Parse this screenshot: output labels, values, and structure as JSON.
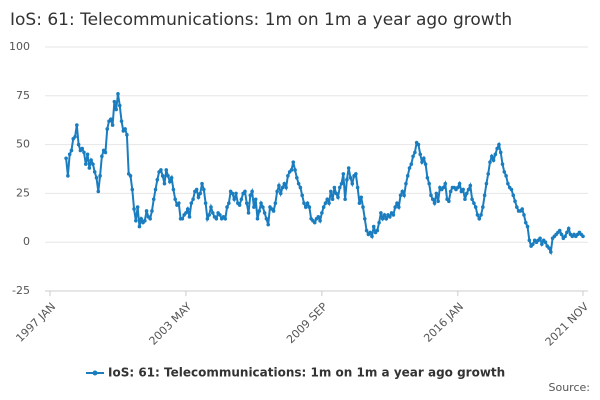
{
  "chart_data": {
    "type": "line",
    "title": "IoS: 61: Telecommunications: 1m on 1m a year ago growth",
    "source": "Source:",
    "categories": [
      "1997 JAN",
      null,
      null,
      null,
      null,
      null,
      null,
      null,
      null,
      null,
      null,
      null,
      null,
      null,
      null,
      null,
      null,
      null,
      null,
      null,
      null,
      null,
      null,
      null,
      null,
      null,
      null,
      null,
      null,
      null,
      null,
      null,
      null,
      null,
      null,
      null,
      null,
      null,
      null,
      null,
      null,
      null,
      null,
      null,
      null,
      null,
      null,
      null,
      null,
      null,
      null,
      null,
      null,
      null,
      null,
      null,
      null,
      null,
      null,
      null,
      null,
      null,
      null,
      null,
      null,
      null,
      null,
      null,
      null,
      null,
      null,
      null,
      null,
      null,
      null,
      null,
      "2003 MAY",
      null,
      null,
      null,
      null,
      null,
      null,
      null,
      null,
      null,
      null,
      null,
      null,
      null,
      null,
      null,
      null,
      null,
      null,
      null,
      null,
      null,
      null,
      null,
      null,
      null,
      null,
      null,
      null,
      null,
      null,
      null,
      null,
      null,
      null,
      null,
      null,
      null,
      null,
      null,
      null,
      null,
      null,
      null,
      null,
      null,
      null,
      null,
      null,
      null,
      null,
      null,
      null,
      null,
      null,
      null,
      null,
      null,
      null,
      null,
      null,
      null,
      null,
      null,
      null,
      null,
      null,
      null,
      null,
      null,
      null,
      null,
      null,
      null,
      null,
      null,
      "2009 SEP",
      null,
      null,
      null,
      null,
      null,
      null,
      null,
      null,
      null,
      null,
      null,
      null,
      null,
      null,
      null,
      null,
      null,
      null,
      null,
      null,
      null,
      null,
      null,
      null,
      null,
      null,
      null,
      null,
      null,
      null,
      null,
      null,
      null,
      null,
      null,
      null,
      null,
      null,
      null,
      null,
      null,
      null,
      null,
      null,
      null,
      null,
      null,
      null,
      null,
      null,
      null,
      null,
      null,
      null,
      null,
      null,
      null,
      null,
      null,
      null,
      null,
      null,
      null,
      null,
      null,
      null,
      null,
      null,
      null,
      null,
      null,
      null,
      null,
      null,
      null,
      "2016 JAN",
      null,
      null,
      null,
      null,
      null,
      null,
      null,
      null,
      null,
      null,
      null,
      null,
      null,
      null,
      null,
      null,
      null,
      null,
      null,
      null,
      null,
      null,
      null,
      null,
      null,
      null,
      null,
      null,
      null,
      null,
      null,
      null,
      null,
      null,
      null,
      null,
      null,
      null,
      null,
      null,
      null,
      null,
      null,
      null,
      null,
      null,
      null,
      null,
      null,
      null,
      null,
      null,
      null,
      null,
      null,
      null,
      null,
      null,
      null,
      null,
      null,
      null,
      null,
      null,
      null,
      null,
      null,
      null,
      null,
      "2021 NOV"
    ],
    "series": [
      {
        "name": "IoS: 61: Telecommunications: 1m on 1m a year ago growth",
        "color": "#1a7dbf",
        "values": [
          null,
          null,
          null,
          null,
          null,
          null,
          null,
          null,
          null,
          43,
          34,
          45,
          47,
          53,
          54,
          60,
          50,
          47,
          48,
          46,
          40,
          45,
          38,
          42,
          40,
          36,
          33,
          26,
          34,
          44,
          47,
          46,
          58,
          62,
          63,
          60,
          72,
          68,
          76,
          70,
          62,
          57,
          58,
          55,
          35,
          34,
          27,
          17,
          11,
          18,
          8,
          12,
          10,
          11,
          16,
          13,
          12,
          16,
          22,
          27,
          32,
          36,
          37,
          34,
          30,
          37,
          34,
          31,
          33,
          27,
          22,
          19,
          20,
          12,
          12,
          14,
          15,
          17,
          13,
          20,
          22,
          26,
          27,
          23,
          25,
          30,
          27,
          20,
          12,
          14,
          18,
          15,
          13,
          12,
          15,
          14,
          12,
          13,
          12,
          18,
          20,
          26,
          25,
          22,
          25,
          20,
          19,
          22,
          25,
          26,
          20,
          15,
          24,
          26,
          18,
          22,
          12,
          16,
          20,
          18,
          15,
          12,
          9,
          18,
          17,
          16,
          20,
          26,
          29,
          25,
          28,
          30,
          28,
          34,
          36,
          37,
          41,
          37,
          33,
          30,
          28,
          24,
          20,
          18,
          20,
          18,
          12,
          11,
          10,
          12,
          13,
          11,
          15,
          18,
          20,
          22,
          20,
          26,
          22,
          28,
          25,
          23,
          28,
          30,
          35,
          22,
          32,
          38,
          33,
          30,
          34,
          35,
          28,
          20,
          23,
          18,
          12,
          6,
          4,
          5,
          3,
          8,
          5,
          6,
          10,
          15,
          12,
          14,
          12,
          14,
          13,
          15,
          14,
          18,
          20,
          18,
          24,
          26,
          24,
          30,
          34,
          38,
          40,
          44,
          46,
          51,
          50,
          45,
          41,
          43,
          40,
          33,
          30,
          24,
          22,
          20,
          25,
          21,
          28,
          27,
          28,
          30,
          22,
          21,
          26,
          28,
          28,
          27,
          28,
          30,
          26,
          27,
          22,
          25,
          27,
          29,
          22,
          20,
          18,
          14,
          12,
          14,
          18,
          24,
          30,
          35,
          41,
          44,
          42,
          45,
          48,
          50,
          46,
          40,
          36,
          34,
          30,
          28,
          27,
          24,
          21,
          18,
          16,
          16,
          17,
          14,
          10,
          8,
          1,
          -2,
          -1,
          1,
          0,
          1,
          2,
          -1,
          1,
          0,
          -2,
          -3,
          -5,
          2,
          3,
          4,
          5,
          6,
          4,
          2,
          3,
          5,
          7,
          4,
          3,
          4,
          3,
          4,
          5,
          4,
          3
        ]
      }
    ],
    "ylim": [
      -25,
      100
    ],
    "yticks": [
      -25,
      0,
      25,
      50,
      75,
      100
    ],
    "grid": true
  }
}
